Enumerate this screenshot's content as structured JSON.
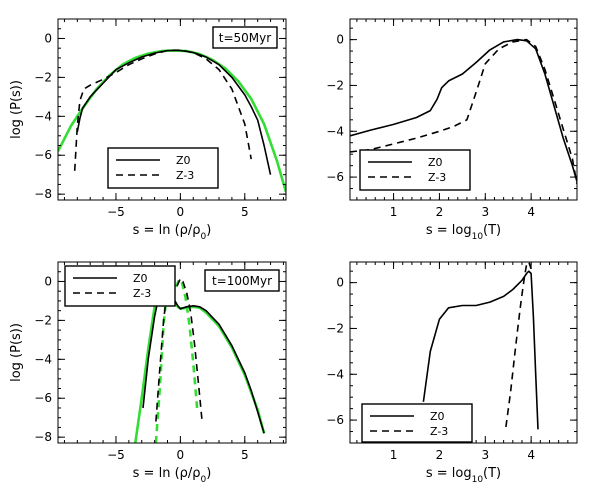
{
  "chart_data": [
    {
      "type": "line",
      "xlabel": "s = ln (ρ/ρ0)",
      "ylabel": "log (P(s))",
      "xlim": [
        -9.5,
        8.2
      ],
      "ylim": [
        -8.3,
        1.0
      ],
      "xticks": [
        -5,
        0,
        5
      ],
      "yticks": [
        0,
        -2,
        -4,
        -6,
        -8
      ],
      "annotation": "t=50Myr",
      "legend_position": "bottom-center",
      "legend": [
        "Z0",
        "Z-3"
      ],
      "series": [
        {
          "name": "Z0",
          "color": "#000000",
          "style": "solid",
          "x": [
            -8.0,
            -7.8,
            -7.6,
            -7.3,
            -7.0,
            -6.0,
            -5.0,
            -4.0,
            -3.0,
            -2.0,
            -1.0,
            0.0,
            1.0,
            2.0,
            3.0,
            4.0,
            5.0,
            5.5,
            6.0,
            6.5,
            7.0
          ],
          "y": [
            -4.8,
            -4.1,
            -3.6,
            -3.3,
            -3.0,
            -2.3,
            -1.6,
            -1.25,
            -0.95,
            -0.75,
            -0.62,
            -0.62,
            -0.72,
            -0.95,
            -1.35,
            -2.0,
            -2.9,
            -3.5,
            -4.2,
            -5.5,
            -7.0
          ]
        },
        {
          "name": "Z-3",
          "color": "#000000",
          "style": "dashed",
          "x": [
            -8.2,
            -8.0,
            -7.8,
            -7.5,
            -7.0,
            -6.0,
            -5.0,
            -4.0,
            -3.0,
            -2.0,
            -1.0,
            0.0,
            1.0,
            2.0,
            3.0,
            4.0,
            5.0,
            5.5
          ],
          "y": [
            -6.8,
            -4.5,
            -3.2,
            -2.6,
            -2.4,
            -2.1,
            -1.75,
            -1.35,
            -1.05,
            -0.8,
            -0.62,
            -0.6,
            -0.72,
            -1.05,
            -1.6,
            -2.6,
            -4.4,
            -6.2
          ]
        },
        {
          "name": "",
          "color": "#33dd33",
          "style": "solid",
          "x": [
            -9.5,
            -8.5,
            -7.5,
            -6.5,
            -5.5,
            -4.5,
            -3.5,
            -2.5,
            -1.5,
            -0.5,
            0.5,
            1.5,
            2.5,
            3.5,
            4.5,
            5.5,
            6.5,
            7.5,
            8.2
          ],
          "y": [
            -5.8,
            -4.5,
            -3.5,
            -2.6,
            -1.9,
            -1.35,
            -1.0,
            -0.78,
            -0.65,
            -0.62,
            -0.65,
            -0.8,
            -1.1,
            -1.55,
            -2.2,
            -3.1,
            -4.4,
            -6.3,
            -7.9
          ]
        }
      ]
    },
    {
      "type": "line",
      "xlabel": "s = log10(T)",
      "ylabel": "",
      "xlim": [
        0.05,
        5.0
      ],
      "ylim": [
        -7.0,
        0.9
      ],
      "xticks": [
        1,
        2,
        3,
        4
      ],
      "yticks": [
        0,
        -2,
        -4,
        -6
      ],
      "annotation": "",
      "legend_position": "bottom-left",
      "legend": [
        "Z0",
        "Z-3"
      ],
      "series": [
        {
          "name": "Z0",
          "color": "#000000",
          "style": "solid",
          "x": [
            0.05,
            0.5,
            1.0,
            1.5,
            1.8,
            1.95,
            2.05,
            2.2,
            2.5,
            2.8,
            3.1,
            3.4,
            3.7,
            3.9,
            4.1,
            4.3,
            4.5,
            4.7,
            4.9,
            5.0
          ],
          "y": [
            -4.2,
            -3.95,
            -3.7,
            -3.4,
            -3.1,
            -2.6,
            -2.1,
            -1.8,
            -1.5,
            -1.0,
            -0.45,
            -0.1,
            0.0,
            -0.05,
            -0.4,
            -1.5,
            -2.9,
            -4.3,
            -5.5,
            -6.2
          ]
        },
        {
          "name": "Z-3",
          "color": "#000000",
          "style": "dashed",
          "x": [
            0.05,
            0.5,
            1.0,
            1.5,
            2.0,
            2.3,
            2.6,
            2.8,
            3.0,
            3.3,
            3.6,
            3.9,
            4.1,
            4.3,
            4.5,
            4.7,
            4.9,
            5.0
          ],
          "y": [
            -4.9,
            -4.8,
            -4.55,
            -4.3,
            -4.0,
            -3.8,
            -3.5,
            -2.3,
            -1.05,
            -0.4,
            -0.1,
            0.0,
            -0.3,
            -1.3,
            -2.6,
            -3.9,
            -5.2,
            -6.3
          ]
        }
      ]
    },
    {
      "type": "line",
      "xlabel": "s = ln (ρ/ρ0)",
      "ylabel": "log (P(s))",
      "xlim": [
        -9.5,
        8.2
      ],
      "ylim": [
        -8.3,
        1.0
      ],
      "xticks": [
        -5,
        0,
        5
      ],
      "yticks": [
        0,
        -2,
        -4,
        -6,
        -8
      ],
      "annotation": "t=100Myr",
      "legend_position": "top-left",
      "legend": [
        "Z0",
        "Z-3"
      ],
      "series": [
        {
          "name": "Z0",
          "color": "#000000",
          "style": "solid",
          "x": [
            -2.9,
            -2.5,
            -2.0,
            -1.5,
            -1.1,
            -0.8,
            -0.5,
            -0.2,
            0.0,
            0.5,
            1.0,
            1.5,
            2.0,
            3.0,
            4.0,
            5.0,
            5.5,
            6.0,
            6.5
          ],
          "y": [
            -6.5,
            -4.0,
            -1.8,
            -0.2,
            0.2,
            -0.3,
            -0.9,
            -1.25,
            -1.4,
            -1.3,
            -1.25,
            -1.3,
            -1.5,
            -2.2,
            -3.3,
            -4.7,
            -5.6,
            -6.7,
            -7.8
          ]
        },
        {
          "name": "Z-3",
          "color": "#000000",
          "style": "dashed",
          "x": [
            -1.9,
            -1.6,
            -1.3,
            -1.0,
            -0.8,
            -0.5,
            -0.2,
            0.0,
            0.2,
            0.5,
            0.8,
            1.1,
            1.4,
            1.7
          ],
          "y": [
            -7.2,
            -4.5,
            -2.0,
            -0.3,
            -0.15,
            -0.6,
            -0.15,
            0.15,
            0.0,
            -0.6,
            -1.6,
            -3.2,
            -5.2,
            -7.3
          ]
        },
        {
          "name": "",
          "color": "#33dd33",
          "style": "solid",
          "x": [
            -3.5,
            -3.0,
            -2.5,
            -2.0,
            -1.5,
            -1.1,
            -0.8,
            -0.5,
            -0.2,
            0.0,
            0.5,
            1.0,
            1.5,
            2.0,
            3.0,
            4.0,
            5.0,
            6.0,
            6.5
          ],
          "y": [
            -8.3,
            -6.0,
            -3.5,
            -1.3,
            0.0,
            0.25,
            -0.4,
            -1.0,
            -1.3,
            -1.4,
            -1.35,
            -1.3,
            -1.35,
            -1.6,
            -2.3,
            -3.4,
            -4.8,
            -6.6,
            -7.8
          ]
        },
        {
          "name": "",
          "color": "#33dd33",
          "style": "dashed",
          "x": [
            -1.9,
            -1.6,
            -1.3,
            -1.0,
            -0.7,
            -0.4,
            -0.1,
            0.1,
            0.4,
            0.7,
            1.0,
            1.3
          ],
          "y": [
            -8.3,
            -5.5,
            -2.2,
            -0.25,
            -0.3,
            -0.4,
            0.1,
            0.0,
            -0.8,
            -2.2,
            -4.2,
            -6.5
          ]
        }
      ]
    },
    {
      "type": "line",
      "xlabel": "s = log10(T)",
      "ylabel": "",
      "xlim": [
        0.05,
        5.0
      ],
      "ylim": [
        -7.0,
        0.9
      ],
      "xticks": [
        1,
        2,
        3,
        4
      ],
      "yticks": [
        0,
        -2,
        -4,
        -6
      ],
      "annotation": "",
      "legend_position": "bottom-left",
      "legend": [
        "Z0",
        "Z-3"
      ],
      "series": [
        {
          "name": "Z0",
          "color": "#000000",
          "style": "solid",
          "x": [
            1.65,
            1.8,
            2.0,
            2.2,
            2.5,
            2.8,
            3.1,
            3.4,
            3.6,
            3.8,
            3.9,
            3.95,
            4.0,
            4.05,
            4.1,
            4.15
          ],
          "y": [
            -5.2,
            -3.0,
            -1.6,
            -1.1,
            -1.0,
            -1.0,
            -0.85,
            -0.6,
            -0.3,
            0.1,
            0.4,
            0.5,
            0.4,
            -1.5,
            -4.0,
            -6.4
          ]
        },
        {
          "name": "Z-3",
          "color": "#000000",
          "style": "dashed",
          "x": [
            3.45,
            3.55,
            3.65,
            3.72,
            3.78,
            3.85,
            3.9,
            3.95,
            4.0
          ],
          "y": [
            -6.3,
            -4.8,
            -3.0,
            -1.8,
            -0.8,
            0.2,
            0.8,
            0.9,
            0.6
          ]
        }
      ]
    }
  ]
}
